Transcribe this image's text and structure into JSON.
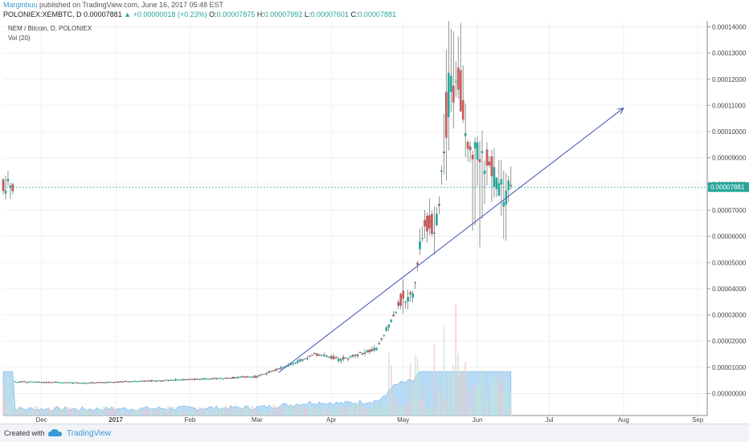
{
  "header": {
    "author": "Marginbuu",
    "published_text": "published on TradingView.com, June 16, 2017 05:48 EST",
    "symbol": "POLONIEX:XEMBTC, D",
    "last": "0.00007881",
    "change_arrow": "▲",
    "change": "+0.00000018 (+0.23%)",
    "o_label": "O:",
    "o_value": "0.00007875",
    "h_label": "H:",
    "h_value": "0.00007992",
    "l_label": "L:",
    "l_value": "0.00007601",
    "c_label": "C:",
    "c_value": "0.00007881"
  },
  "legend": {
    "pair": "NEM / Bitcoin, D, POLONIEX",
    "vol": "Vol (20)"
  },
  "footer": {
    "created": "Created with",
    "brand": "TradingView",
    "logo_icon": "tradingview-cloud-icon"
  },
  "colors": {
    "up": "#26a69a",
    "down": "#ef5350",
    "candle_body": "#4b4b4b",
    "trendline": "#3f51b5",
    "volume_area": "#9fcdf2",
    "price_label_bg": "#26a69a"
  },
  "chart_data": {
    "type": "candlestick",
    "title": "NEM / Bitcoin, D, POLONIEX",
    "x_ticks": [
      "Dec",
      "2017",
      "Feb",
      "Mar",
      "Apr",
      "May",
      "Jun",
      "Jul",
      "Aug",
      "Sep"
    ],
    "y_ticks": [
      "0.00014000",
      "0.00013000",
      "0.00012000",
      "0.00011000",
      "0.00010000",
      "0.00009000",
      "0.00008000",
      "0.00007000",
      "0.00006000",
      "0.00005000",
      "0.00004000",
      "0.00003000",
      "0.00002000",
      "0.00001000",
      "0.00000000"
    ],
    "ylim": [
      0,
      0.00014
    ],
    "last_price_label": "0.00007881",
    "last_price": 7.881e-05,
    "grid": true,
    "overlay": "Vol (20)",
    "trendline": {
      "start": [
        "2017-03-10",
        8e-06
      ],
      "end": [
        "2017-08-01",
        0.000109
      ]
    },
    "price_series": [
      [
        "2016-11-20",
        4.5e-06
      ],
      [
        "2016-12-20",
        4e-06
      ],
      [
        "2017-01-20",
        5e-06
      ],
      [
        "2017-02-15",
        5.8e-06
      ],
      [
        "2017-03-01",
        6.5e-06
      ],
      [
        "2017-03-15",
        1.1e-05
      ],
      [
        "2017-03-25",
        1.5e-05
      ],
      [
        "2017-04-05",
        1.3e-05
      ],
      [
        "2017-04-20",
        1.7e-05
      ],
      [
        "2017-04-30",
        3.5e-05
      ],
      [
        "2017-05-05",
        3.8e-05
      ],
      [
        "2017-05-10",
        6.5e-05
      ],
      [
        "2017-05-15",
        6.5e-05
      ],
      [
        "2017-05-20",
        0.000115
      ],
      [
        "2017-05-24",
        0.00012
      ],
      [
        "2017-05-28",
        9.5e-05
      ],
      [
        "2017-06-05",
        9e-05
      ],
      [
        "2017-06-10",
        7.8e-05
      ],
      [
        "2017-06-15",
        7.88e-05
      ]
    ]
  }
}
